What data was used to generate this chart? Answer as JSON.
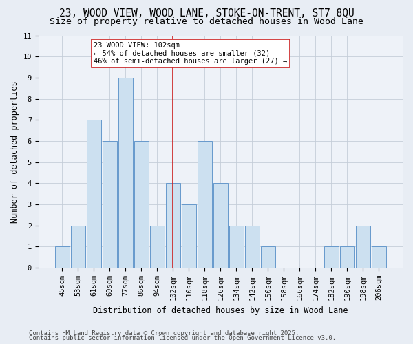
{
  "title1": "23, WOOD VIEW, WOOD LANE, STOKE-ON-TRENT, ST7 8QU",
  "title2": "Size of property relative to detached houses in Wood Lane",
  "xlabel": "Distribution of detached houses by size in Wood Lane",
  "ylabel": "Number of detached properties",
  "categories": [
    "45sqm",
    "53sqm",
    "61sqm",
    "69sqm",
    "77sqm",
    "86sqm",
    "94sqm",
    "102sqm",
    "110sqm",
    "118sqm",
    "126sqm",
    "134sqm",
    "142sqm",
    "150sqm",
    "158sqm",
    "166sqm",
    "174sqm",
    "182sqm",
    "190sqm",
    "198sqm",
    "206sqm"
  ],
  "values": [
    1,
    2,
    7,
    6,
    9,
    6,
    2,
    4,
    3,
    6,
    4,
    2,
    2,
    1,
    0,
    0,
    0,
    1,
    1,
    2,
    1
  ],
  "bar_color": "#cce0f0",
  "bar_edge_color": "#6699cc",
  "highlight_bar_index": 7,
  "highlight_line_color": "#cc2222",
  "annotation_text": "23 WOOD VIEW: 102sqm\n← 54% of detached houses are smaller (32)\n46% of semi-detached houses are larger (27) →",
  "annotation_box_color": "#ffffff",
  "annotation_box_edge": "#cc2222",
  "ylim": [
    0,
    11
  ],
  "yticks": [
    0,
    1,
    2,
    3,
    4,
    5,
    6,
    7,
    8,
    9,
    10,
    11
  ],
  "footer1": "Contains HM Land Registry data © Crown copyright and database right 2025.",
  "footer2": "Contains public sector information licensed under the Open Government Licence v3.0.",
  "bg_color": "#e8edf4",
  "plot_bg_color": "#eef2f8",
  "title_fontsize": 10.5,
  "subtitle_fontsize": 9.5,
  "axis_label_fontsize": 8.5,
  "tick_fontsize": 7.5,
  "annotation_fontsize": 7.5,
  "footer_fontsize": 6.5
}
